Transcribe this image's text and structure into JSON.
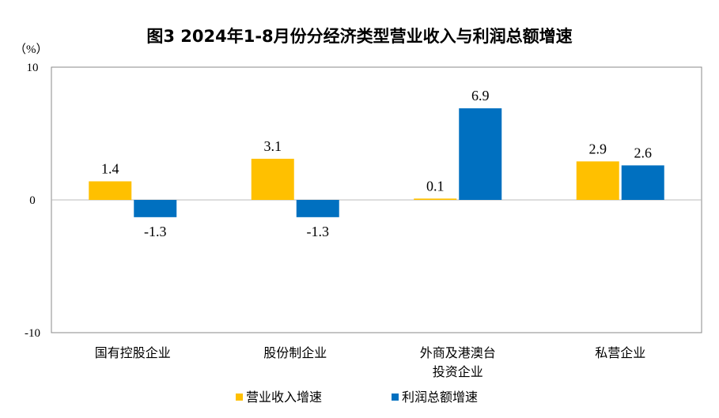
{
  "chart_data": {
    "type": "bar",
    "title": "图3  2024年1-8月份分经济类型营业收入与利润总额增速",
    "ylabel": "（%）",
    "ylim": [
      -10,
      10
    ],
    "yticks": [
      "10",
      "0",
      "-10"
    ],
    "categories": [
      [
        "国有控股企业"
      ],
      [
        "股份制企业"
      ],
      [
        "外商及港澳台",
        "投资企业"
      ],
      [
        "私营企业"
      ]
    ],
    "series": [
      {
        "name": "营业收入增速",
        "color": "#FFC000",
        "values": [
          1.4,
          3.1,
          0.1,
          2.9
        ]
      },
      {
        "name": "利润总额增速",
        "color": "#0070C0",
        "values": [
          -1.3,
          -1.3,
          6.9,
          2.6
        ]
      }
    ],
    "legend": "bottom",
    "grid": false
  }
}
